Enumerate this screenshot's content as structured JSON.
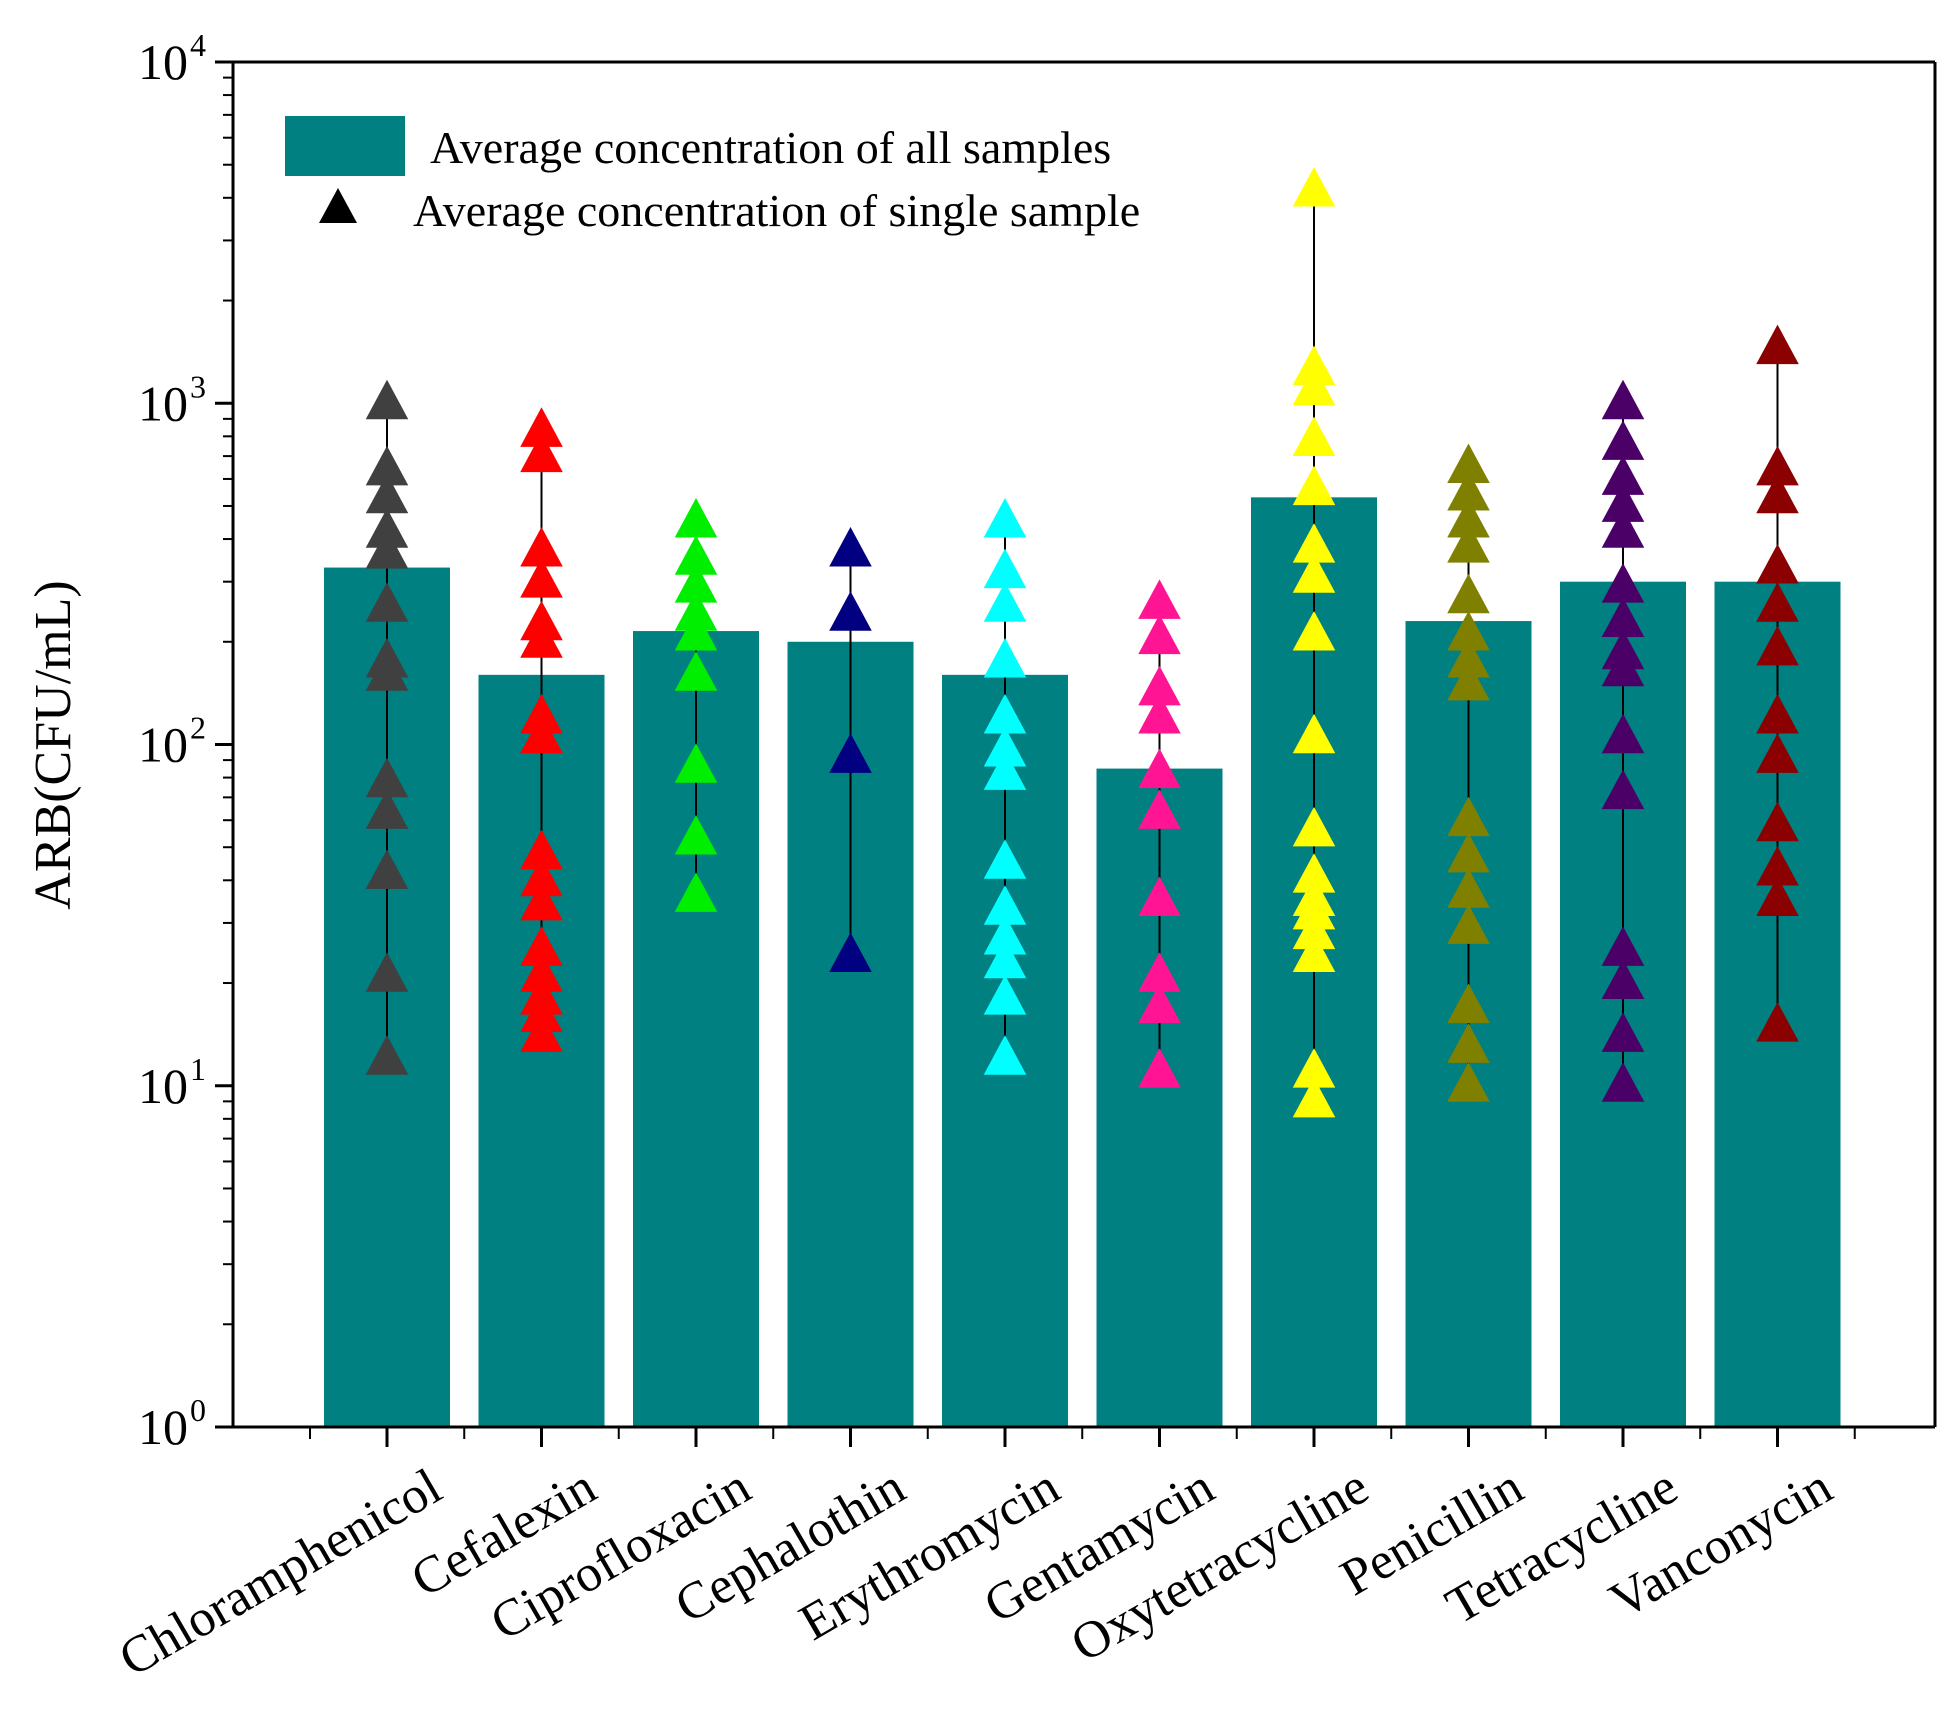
{
  "chart_data": {
    "type": "bar",
    "title": "",
    "xlabel": "",
    "ylabel": "ARB(CFU/mL)",
    "yscale": "log",
    "ylim": [
      1,
      10000
    ],
    "yticks": [
      {
        "value": 1,
        "base": "10",
        "exp": "0"
      },
      {
        "value": 10,
        "base": "10",
        "exp": "1"
      },
      {
        "value": 100,
        "base": "10",
        "exp": "2"
      },
      {
        "value": 1000,
        "base": "10",
        "exp": "3"
      },
      {
        "value": 10000,
        "base": "10",
        "exp": "4"
      }
    ],
    "legend": {
      "position": "top-left",
      "bar_label": "Average concentration of all samples",
      "marker_label": "Average concentration of single sample"
    },
    "bar_color": "#008080",
    "marker_legend_color": "#000000",
    "errorbar_color": "#000000",
    "categories": [
      "Chloramphenicol",
      "Cefalexin",
      "Ciprofloxacin",
      "Cephalothin",
      "Erythromycin",
      "Gentamycin",
      "Oxytetracycline",
      "Penicillin",
      "Tetracycline",
      "Vanconycin"
    ],
    "bar_values": [
      330,
      160,
      215,
      200,
      160,
      85,
      530,
      230,
      300,
      300
    ],
    "series": [
      {
        "name": "Chloramphenicol",
        "color": "#404040",
        "ranges": [
          12,
          1000
        ],
        "points": [
          12,
          21,
          42,
          63,
          78,
          160,
          175,
          255,
          365,
          420,
          530,
          640,
          1000
        ]
      },
      {
        "name": "Cefalexin",
        "color": "#ff0000",
        "ranges": [
          14,
          830
        ],
        "points": [
          14,
          16,
          18,
          21,
          25,
          34,
          40,
          48,
          105,
          120,
          200,
          225,
          300,
          370,
          700,
          830
        ]
      },
      {
        "name": "Ciprofloxacin",
        "color": "#00ee00",
        "ranges": [
          36,
          450
        ],
        "points": [
          36,
          53,
          86,
          160,
          210,
          240,
          290,
          350,
          450
        ]
      },
      {
        "name": "Cephalothin",
        "color": "#000080",
        "ranges": [
          24,
          370
        ],
        "points": [
          24,
          92,
          240,
          370
        ]
      },
      {
        "name": "Erythromycin",
        "color": "#00ffff",
        "ranges": [
          12,
          450
        ],
        "points": [
          12,
          18,
          23,
          27,
          33,
          45,
          82,
          96,
          120,
          175,
          255,
          320,
          450
        ]
      },
      {
        "name": "Gentamycin",
        "color": "#ff1493",
        "ranges": [
          11,
          260
        ],
        "points": [
          11,
          17,
          21,
          35,
          63,
          83,
          120,
          145,
          205,
          260
        ]
      },
      {
        "name": "Oxytetracycline",
        "color": "#ffff00",
        "ranges": [
          9,
          4200
        ],
        "points": [
          9,
          11,
          24,
          28,
          32,
          35,
          41,
          56,
          105,
          210,
          310,
          380,
          560,
          780,
          1100,
          1260,
          4200
        ]
      },
      {
        "name": "Penicillin",
        "color": "#808000",
        "ranges": [
          10,
          650
        ],
        "points": [
          10,
          13,
          17,
          29,
          37,
          47,
          60,
          150,
          175,
          210,
          270,
          380,
          450,
          540,
          650
        ]
      },
      {
        "name": "Tetracycline",
        "color": "#4b0068",
        "ranges": [
          10,
          1000
        ],
        "points": [
          10,
          14,
          20,
          25,
          72,
          105,
          165,
          185,
          230,
          290,
          420,
          500,
          600,
          760,
          1000
        ]
      },
      {
        "name": "Vanconycin",
        "color": "#8b0000",
        "ranges": [
          15,
          1450
        ],
        "points": [
          15,
          35,
          43,
          58,
          92,
          120,
          190,
          255,
          330,
          530,
          640,
          1450
        ]
      }
    ]
  }
}
